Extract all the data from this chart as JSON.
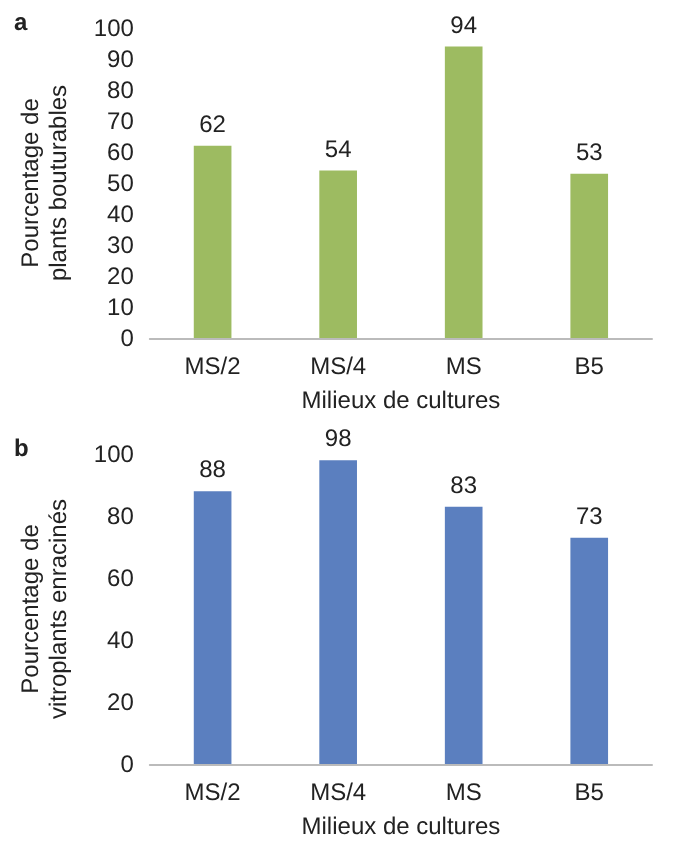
{
  "chart_data": [
    {
      "type": "bar",
      "title": "a",
      "xlabel": "Milieux de cultures",
      "ylabel": "Pourcentage de\nplants bouturables",
      "categories": [
        "MS/2",
        "MS/4",
        "MS",
        "B5"
      ],
      "values": [
        62,
        54,
        94,
        53
      ],
      "color": "#9dbb61",
      "ylim": [
        0,
        100
      ],
      "yticks": [
        0,
        10,
        20,
        30,
        40,
        50,
        60,
        70,
        80,
        90,
        100
      ],
      "grid": false,
      "data_labels": true
    },
    {
      "type": "bar",
      "title": "b",
      "xlabel": "Milieux de cultures",
      "ylabel": "Pourcentage de\nvitroplants enracinés",
      "categories": [
        "MS/2",
        "MS/4",
        "MS",
        "B5"
      ],
      "values": [
        88,
        98,
        83,
        73
      ],
      "color": "#5b7fbf",
      "ylim": [
        0,
        100
      ],
      "yticks": [
        0,
        20,
        40,
        60,
        80,
        100
      ],
      "grid": false,
      "data_labels": true
    }
  ]
}
